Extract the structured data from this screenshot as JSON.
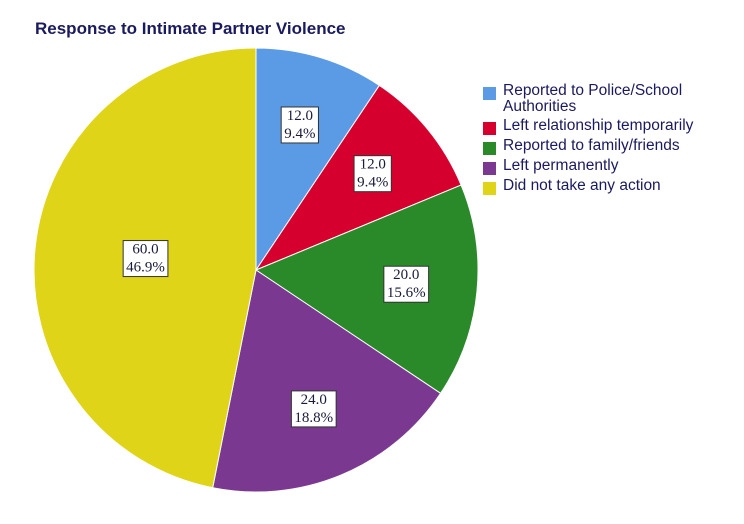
{
  "chart_data": {
    "type": "pie",
    "title": "Response to Intimate Partner Violence",
    "categories": [
      "Reported to Police/School Authorities",
      "Left relationship temporarily",
      "Reported to family/friends",
      "Left permanently",
      "Did not take any action"
    ],
    "values": [
      12,
      12,
      20,
      24,
      60
    ],
    "value_labels": [
      "12.0",
      "12.0",
      "20.0",
      "24.0",
      "60.0"
    ],
    "percent_labels": [
      "9.4%",
      "9.4%",
      "15.6%",
      "18.8%",
      "46.9%"
    ],
    "colors": [
      "#5b9be6",
      "#d6002e",
      "#2a8a2a",
      "#7b3891",
      "#e0d418"
    ],
    "legend": "right"
  }
}
